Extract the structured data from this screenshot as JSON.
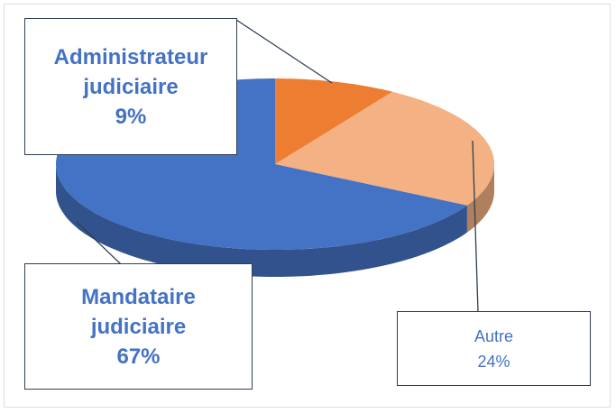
{
  "chart_data": {
    "type": "pie",
    "categories": [
      "Administrateur judiciaire",
      "Autre",
      "Mandataire judiciaire"
    ],
    "values": [
      9,
      24,
      67
    ],
    "value_labels": [
      "9%",
      "24%",
      "67%"
    ],
    "colors": [
      "#ed7d31",
      "#f4b183",
      "#4472c4"
    ]
  }
}
